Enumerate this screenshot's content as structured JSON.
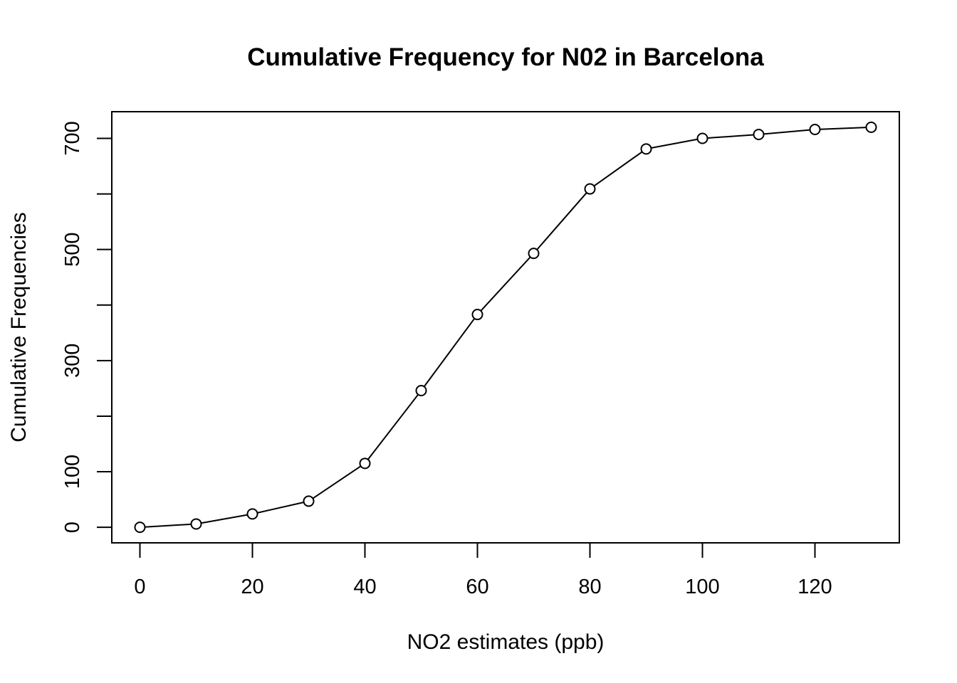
{
  "chart_data": {
    "type": "line",
    "title": "Cumulative Frequency for N02 in Barcelona",
    "xlabel": "NO2 estimates (ppb)",
    "ylabel": "Cumulative Frequencies",
    "xlim": [
      -5,
      135
    ],
    "ylim": [
      -28,
      748
    ],
    "x_ticks": [
      0,
      20,
      40,
      60,
      80,
      100,
      120
    ],
    "x_tick_labels": [
      "0",
      "20",
      "40",
      "60",
      "80",
      "100",
      "120"
    ],
    "y_ticks": [
      0,
      100,
      200,
      300,
      400,
      500,
      600,
      700
    ],
    "y_tick_labels": [
      "0",
      "100",
      "",
      "300",
      "",
      "500",
      "",
      "700"
    ],
    "grid": false,
    "legend": "none",
    "marker": "open-circle",
    "line_color": "#000000",
    "series": [
      {
        "x": [
          0,
          10,
          20,
          30,
          40,
          50,
          60,
          70,
          80,
          90,
          100,
          110,
          120,
          130
        ],
        "values": [
          0,
          6,
          24,
          47,
          115,
          246,
          383,
          493,
          609,
          681,
          700,
          707,
          716,
          720
        ]
      }
    ]
  }
}
